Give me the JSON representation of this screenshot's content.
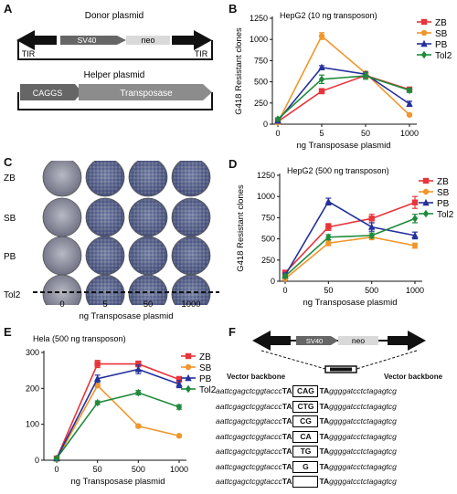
{
  "panels": {
    "A": {
      "label": "A",
      "donor_title": "Donor plasmid",
      "helper_title": "Helper plasmid",
      "sv40": "SV40",
      "neo": "neo",
      "tir_left": "TIR",
      "tir_right": "TIR",
      "cags": "CAGGS",
      "transposase": "Transposase"
    },
    "B": {
      "label": "B"
    },
    "C": {
      "label": "C",
      "rows": [
        "ZB",
        "SB",
        "PB",
        "Tol2"
      ],
      "cols": [
        "0",
        "5",
        "50",
        "1000"
      ],
      "xlabel": "ng Transposase plasmid"
    },
    "D": {
      "label": "D"
    },
    "E": {
      "label": "E"
    },
    "F": {
      "label": "F",
      "sv40": "SV40",
      "neo": "neo",
      "vb_left": "Vector backbone",
      "vb_right": "Vector backbone",
      "sequences": [
        {
          "left": "aattcgagctcggtaccc",
          "ta1": "TA",
          "box": "CAG",
          "ta2": "TA",
          "right": "ggggatcctctagagtcg"
        },
        {
          "left": "aattcgagctcggtaccc",
          "ta1": "TA",
          "box": "CTG",
          "ta2": "TA",
          "right": "ggggatcctctagagtcg"
        },
        {
          "left": "aattcgagctcggtaccc",
          "ta1": "TA",
          "box": "CG",
          "ta2": "TA",
          "right": "ggggatcctctagagtcg"
        },
        {
          "left": "aattcgagctcggtaccc",
          "ta1": "TA",
          "box": "CA",
          "ta2": "TA",
          "right": "ggggatcctctagagtcg"
        },
        {
          "left": "aattcgagctcggtaccc",
          "ta1": "TA",
          "box": "TG",
          "ta2": "TA",
          "right": "ggggatcctctagagtcg"
        },
        {
          "left": "aattcgagctcggtaccc",
          "ta1": "TA",
          "box": "G",
          "ta2": "TA",
          "right": "ggggatcctctagagtcg"
        },
        {
          "left": "aattcgagctcggtaccc",
          "ta1": "TA",
          "box": "",
          "ta2": "TA",
          "right": "ggggatcctctagagtcg"
        }
      ]
    }
  },
  "colors": {
    "ZB": "#e8343a",
    "SB": "#f0962a",
    "PB": "#24319c",
    "Tol2": "#1f8a3c"
  },
  "chart_data": [
    {
      "id": "B",
      "type": "line",
      "title": "HepG2 (10 ng transposon)",
      "xlabel": "ng Transposase plasmid",
      "ylabel": "G418 Resistant clones",
      "categories": [
        "0",
        "5",
        "50",
        "1000"
      ],
      "ylim": [
        0,
        1250
      ],
      "yticks": [
        0,
        250,
        500,
        750,
        1000,
        1250
      ],
      "legend": "top-right",
      "series": [
        {
          "name": "ZB",
          "values": [
            30,
            390,
            575,
            410
          ],
          "err": [
            10,
            30,
            30,
            25
          ]
        },
        {
          "name": "SB",
          "values": [
            20,
            1040,
            600,
            110
          ],
          "err": [
            10,
            40,
            25,
            10
          ]
        },
        {
          "name": "PB",
          "values": [
            40,
            670,
            590,
            240
          ],
          "err": [
            10,
            20,
            25,
            30
          ]
        },
        {
          "name": "Tol2",
          "values": [
            60,
            530,
            570,
            400
          ],
          "err": [
            15,
            50,
            40,
            25
          ]
        }
      ]
    },
    {
      "id": "D",
      "type": "line",
      "title": "HepG2 (500 ng transposon)",
      "xlabel": "ng Transposase plasmid",
      "ylabel": "G418 Resistant clones",
      "categories": [
        "0",
        "50",
        "500",
        "1000"
      ],
      "ylim": [
        0,
        1250
      ],
      "yticks": [
        0,
        250,
        500,
        750,
        1000,
        1250
      ],
      "legend": "top-right",
      "series": [
        {
          "name": "ZB",
          "values": [
            100,
            640,
            740,
            930
          ],
          "err": [
            30,
            40,
            50,
            70
          ]
        },
        {
          "name": "SB",
          "values": [
            30,
            450,
            520,
            420
          ],
          "err": [
            15,
            30,
            30,
            30
          ]
        },
        {
          "name": "PB",
          "values": [
            70,
            940,
            640,
            540
          ],
          "err": [
            25,
            40,
            50,
            40
          ]
        },
        {
          "name": "Tol2",
          "values": [
            60,
            520,
            540,
            740
          ],
          "err": [
            20,
            30,
            30,
            50
          ]
        }
      ]
    },
    {
      "id": "E",
      "type": "line",
      "title": "Hela (500 ng transposon)",
      "xlabel": "ng Transposase plasmid",
      "ylabel": "",
      "categories": [
        "0",
        "50",
        "500",
        "1000"
      ],
      "ylim": [
        0,
        300
      ],
      "yticks": [
        0,
        100,
        200,
        300
      ],
      "legend": "top-right",
      "series": [
        {
          "name": "ZB",
          "values": [
            5,
            268,
            268,
            225
          ],
          "err": [
            2,
            10,
            8,
            8
          ]
        },
        {
          "name": "SB",
          "values": [
            3,
            208,
            95,
            68
          ],
          "err": [
            2,
            5,
            4,
            3
          ]
        },
        {
          "name": "PB",
          "values": [
            5,
            227,
            253,
            212
          ],
          "err": [
            2,
            10,
            12,
            10
          ]
        },
        {
          "name": "Tol2",
          "values": [
            5,
            160,
            188,
            148
          ],
          "err": [
            2,
            5,
            6,
            6
          ]
        }
      ]
    }
  ]
}
